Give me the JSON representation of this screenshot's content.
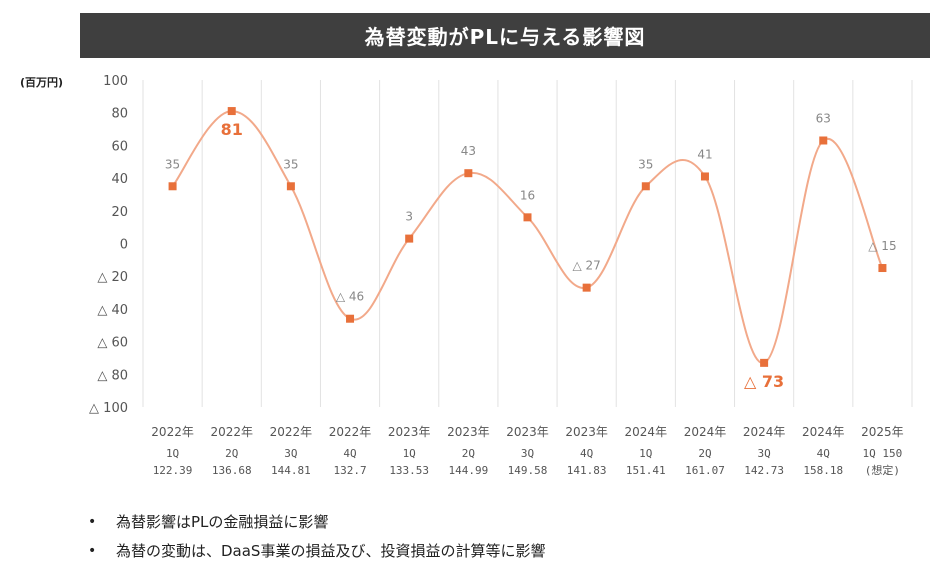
{
  "title": "為替変動がPLに与える影響図",
  "unit_label": "(百万円)",
  "chart_data": {
    "type": "line",
    "title": "為替変動がPLに与える影響図",
    "ylabel": "(百万円)",
    "ylim": [
      -100,
      100
    ],
    "y_ticks": [
      100,
      80,
      60,
      40,
      20,
      0,
      -20,
      -40,
      -60,
      -80,
      -100
    ],
    "y_tick_labels": [
      "100",
      "80",
      "60",
      "40",
      "20",
      "0",
      "△ 20",
      "△ 40",
      "△ 60",
      "△ 80",
      "△ 100"
    ],
    "categories": [
      {
        "year": "2022年",
        "quarter": "1Q",
        "rate": "122.39"
      },
      {
        "year": "2022年",
        "quarter": "2Q",
        "rate": "136.68"
      },
      {
        "year": "2022年",
        "quarter": "3Q",
        "rate": "144.81"
      },
      {
        "year": "2022年",
        "quarter": "4Q",
        "rate": "132.7"
      },
      {
        "year": "2023年",
        "quarter": "1Q",
        "rate": "133.53"
      },
      {
        "year": "2023年",
        "quarter": "2Q",
        "rate": "144.99"
      },
      {
        "year": "2023年",
        "quarter": "3Q",
        "rate": "149.58"
      },
      {
        "year": "2023年",
        "quarter": "4Q",
        "rate": "141.83"
      },
      {
        "year": "2024年",
        "quarter": "1Q",
        "rate": "151.41"
      },
      {
        "year": "2024年",
        "quarter": "2Q",
        "rate": "161.07"
      },
      {
        "year": "2024年",
        "quarter": "3Q",
        "rate": "142.73"
      },
      {
        "year": "2024年",
        "quarter": "4Q",
        "rate": "158.18"
      },
      {
        "year": "2025年",
        "quarter": "1Q",
        "rate": "150",
        "note": "(想定)"
      }
    ],
    "values": [
      35,
      81,
      35,
      -46,
      3,
      43,
      16,
      -27,
      35,
      41,
      -73,
      63,
      -15
    ],
    "data_labels": [
      "35",
      "81",
      "35",
      "△ 46",
      "3",
      "43",
      "16",
      "△ 27",
      "35",
      "41",
      "△ 73",
      "63",
      "△ 15"
    ],
    "highlighted_labels": [
      1,
      10
    ],
    "line_color": "#f2a98a",
    "marker_color": "#e8703a",
    "highlight_color": "#e8703a",
    "grid": "vertical"
  },
  "bullets": [
    "為替影響はPLの金融損益に影響",
    "為替の変動は、DaaS事業の損益及び、投資損益の計算等に影響"
  ]
}
